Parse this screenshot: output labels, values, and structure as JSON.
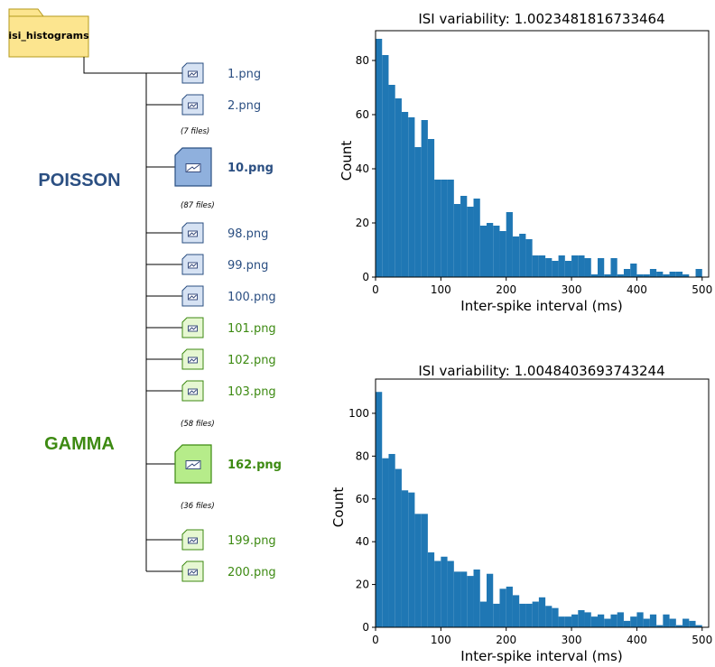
{
  "tree": {
    "root_folder": "isi_histograms",
    "groups": [
      {
        "label": "POISSON",
        "color": "#2b4f82"
      },
      {
        "label": "GAMMA",
        "color": "#3d8a12"
      }
    ],
    "entries": [
      {
        "kind": "file",
        "name": "1.png",
        "group": "poisson"
      },
      {
        "kind": "file",
        "name": "2.png",
        "group": "poisson"
      },
      {
        "kind": "skip",
        "name": "(7 files)"
      },
      {
        "kind": "file",
        "name": "10.png",
        "group": "poisson",
        "highlight": true
      },
      {
        "kind": "skip",
        "name": "(87 files)"
      },
      {
        "kind": "file",
        "name": "98.png",
        "group": "poisson"
      },
      {
        "kind": "file",
        "name": "99.png",
        "group": "poisson"
      },
      {
        "kind": "file",
        "name": "100.png",
        "group": "poisson"
      },
      {
        "kind": "file",
        "name": "101.png",
        "group": "gamma"
      },
      {
        "kind": "file",
        "name": "102.png",
        "group": "gamma"
      },
      {
        "kind": "file",
        "name": "103.png",
        "group": "gamma"
      },
      {
        "kind": "skip",
        "name": "(58 files)"
      },
      {
        "kind": "file",
        "name": "162.png",
        "group": "gamma",
        "highlight": true
      },
      {
        "kind": "skip",
        "name": "(36 files)"
      },
      {
        "kind": "file",
        "name": "199.png",
        "group": "gamma"
      },
      {
        "kind": "file",
        "name": "200.png",
        "group": "gamma"
      }
    ]
  },
  "chart_data": [
    {
      "type": "bar",
      "title": "ISI variability: 1.0023481816733464",
      "xlabel": "Inter-spike interval (ms)",
      "ylabel": "Count",
      "xlim": [
        0,
        510
      ],
      "ylim": [
        0,
        91
      ],
      "xticks": [
        0,
        100,
        200,
        300,
        400,
        500
      ],
      "yticks": [
        0,
        20,
        40,
        60,
        80
      ],
      "bin_width": 10,
      "bin_start": 0,
      "values": [
        88,
        82,
        71,
        66,
        61,
        59,
        48,
        58,
        51,
        36,
        36,
        36,
        27,
        30,
        26,
        29,
        19,
        20,
        19,
        17,
        24,
        15,
        16,
        14,
        8,
        8,
        7,
        6,
        8,
        6,
        8,
        8,
        7,
        1,
        7,
        1,
        7,
        1,
        3,
        5,
        1,
        1,
        3,
        2,
        1,
        2,
        2,
        1,
        0,
        3,
        0
      ],
      "color": "#1f77b4",
      "grid": false
    },
    {
      "type": "bar",
      "title": "ISI variability: 1.0048403693743244",
      "xlabel": "Inter-spike interval (ms)",
      "ylabel": "Count",
      "xlim": [
        0,
        510
      ],
      "ylim": [
        0,
        116
      ],
      "xticks": [
        0,
        100,
        200,
        300,
        400,
        500
      ],
      "yticks": [
        0,
        20,
        40,
        60,
        80,
        100
      ],
      "bin_width": 10,
      "bin_start": 0,
      "values": [
        110,
        79,
        81,
        74,
        64,
        63,
        53,
        53,
        35,
        31,
        33,
        31,
        26,
        26,
        24,
        27,
        12,
        25,
        11,
        18,
        19,
        15,
        11,
        11,
        12,
        14,
        10,
        9,
        5,
        5,
        6,
        8,
        7,
        5,
        6,
        4,
        6,
        7,
        3,
        5,
        7,
        4,
        6,
        1,
        6,
        4,
        1,
        4,
        3,
        1,
        0
      ],
      "color": "#1f77b4",
      "grid": false
    }
  ]
}
